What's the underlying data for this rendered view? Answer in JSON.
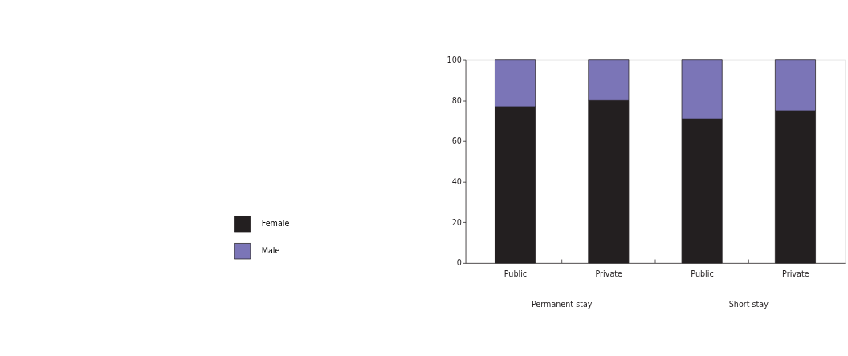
{
  "chart_data": {
    "type": "bar",
    "stacked": true,
    "categories": [
      "Public",
      "Private",
      "Public",
      "Private"
    ],
    "series": [
      {
        "name": "Female",
        "color": "#231f20",
        "values": [
          77,
          80,
          71,
          75
        ]
      },
      {
        "name": "Male",
        "color": "#7b75b7",
        "values": [
          23,
          20,
          29,
          25
        ]
      }
    ],
    "ylim": [
      0,
      100
    ],
    "yticks": [
      0,
      20,
      40,
      60,
      80,
      100
    ],
    "grid": false,
    "legend": "left",
    "annotations": [
      "Permanent stay",
      "Short stay"
    ]
  }
}
